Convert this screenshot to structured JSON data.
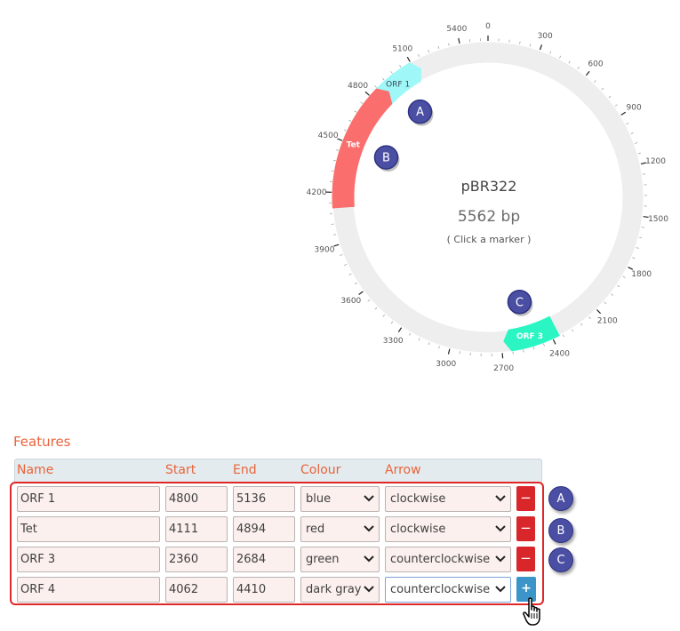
{
  "plasmid": {
    "name": "pBR322",
    "length_bp": 5562,
    "size_label": "5562 bp",
    "hint": "( Click a marker )",
    "tick_labels": [
      "0",
      "300",
      "600",
      "900",
      "1200",
      "1500",
      "1800",
      "2100",
      "2400",
      "2700",
      "3000",
      "3300",
      "3600",
      "3900",
      "4200",
      "4500",
      "4800",
      "5100",
      "5400"
    ],
    "ring_color": "#eeeeee",
    "features": [
      {
        "name": "ORF 1",
        "start": 4800,
        "end": 5136,
        "color": "#9ff7f7",
        "text_color": "#3b4b55",
        "marker": "A"
      },
      {
        "name": "Tet",
        "start": 4111,
        "end": 4894,
        "color": "#fa6e6e",
        "text_color": "#ffffff",
        "marker": "B"
      },
      {
        "name": "ORF 3",
        "start": 2360,
        "end": 2684,
        "color": "#2cf5c4",
        "text_color": "#ffffff",
        "marker": "C"
      }
    ]
  },
  "features_panel": {
    "title": "Features",
    "columns": {
      "name": "Name",
      "start": "Start",
      "end": "End",
      "colour": "Colour",
      "arrow": "Arrow"
    },
    "rows": [
      {
        "name": "ORF 1",
        "start": "4800",
        "end": "5136",
        "colour": "blue",
        "arrow": "clockwise",
        "action": "−",
        "badge": "A"
      },
      {
        "name": "Tet",
        "start": "4111",
        "end": "4894",
        "colour": "red",
        "arrow": "clockwise",
        "action": "−",
        "badge": "B"
      },
      {
        "name": "ORF 3",
        "start": "2360",
        "end": "2684",
        "colour": "green",
        "arrow": "counterclockwise",
        "action": "−",
        "badge": "C"
      },
      {
        "name": "ORF 4",
        "start": "4062",
        "end": "4410",
        "colour": "dark gray",
        "arrow": "counterclockwise",
        "action": "+",
        "badge": ""
      }
    ]
  },
  "colors": {
    "accent_orange": "#e8643a",
    "highlight_red": "#e02727",
    "remove_button": "#d9262a",
    "add_button": "#3b95c8",
    "badge": "#4b4fa3"
  },
  "icons": {
    "select_chevron": "chevron-down-icon",
    "cursor": "hand-pointer-icon"
  }
}
